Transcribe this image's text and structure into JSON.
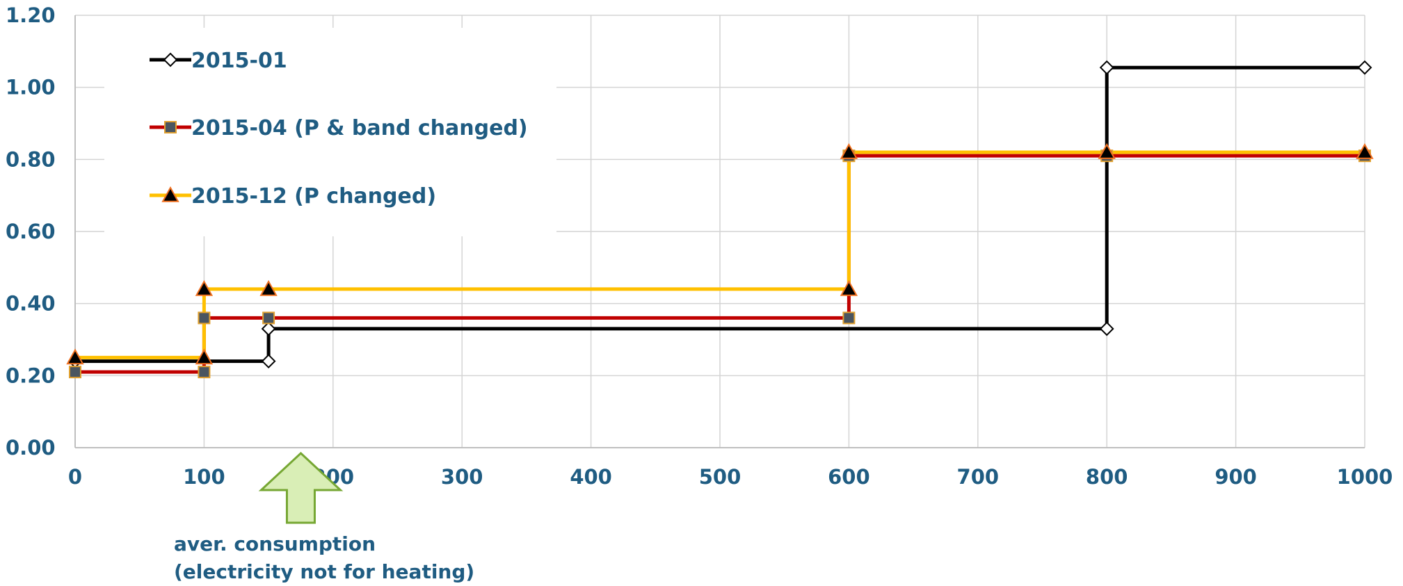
{
  "chart_data": {
    "type": "line",
    "step": true,
    "xlim": [
      0,
      1000
    ],
    "ylim": [
      0,
      1.2
    ],
    "x_ticks": [
      "0",
      "100",
      "200",
      "300",
      "400",
      "500",
      "600",
      "700",
      "800",
      "900",
      "1000"
    ],
    "y_ticks": [
      "0.00",
      "0.20",
      "0.40",
      "0.60",
      "0.80",
      "1.00",
      "1.20"
    ],
    "grid": true,
    "legend_position": "top-left",
    "series": [
      {
        "name": "2015-01",
        "color": "#000000",
        "marker": "diamond-open",
        "points": [
          [
            0,
            0.24
          ],
          [
            150,
            0.24
          ],
          [
            150,
            0.33
          ],
          [
            800,
            0.33
          ],
          [
            800,
            1.055
          ],
          [
            1000,
            1.055
          ]
        ]
      },
      {
        "name": "2015-04 (P & band changed)",
        "color": "#C00000",
        "marker": "square",
        "points": [
          [
            0,
            0.21
          ],
          [
            100,
            0.21
          ],
          [
            100,
            0.36
          ],
          [
            150,
            0.36
          ],
          [
            600,
            0.36
          ],
          [
            600,
            0.81
          ],
          [
            800,
            0.81
          ],
          [
            1000,
            0.81
          ]
        ]
      },
      {
        "name": "2015-12 (P changed)",
        "color": "#FFC000",
        "marker": "triangle",
        "points": [
          [
            0,
            0.25
          ],
          [
            100,
            0.25
          ],
          [
            100,
            0.44
          ],
          [
            150,
            0.44
          ],
          [
            600,
            0.44
          ],
          [
            600,
            0.82
          ],
          [
            800,
            0.82
          ],
          [
            1000,
            0.82
          ]
        ]
      }
    ],
    "annotation": {
      "arrow_x": 175,
      "text_line1": "aver. consumption",
      "text_line2": "(electricity not for heating)"
    }
  }
}
